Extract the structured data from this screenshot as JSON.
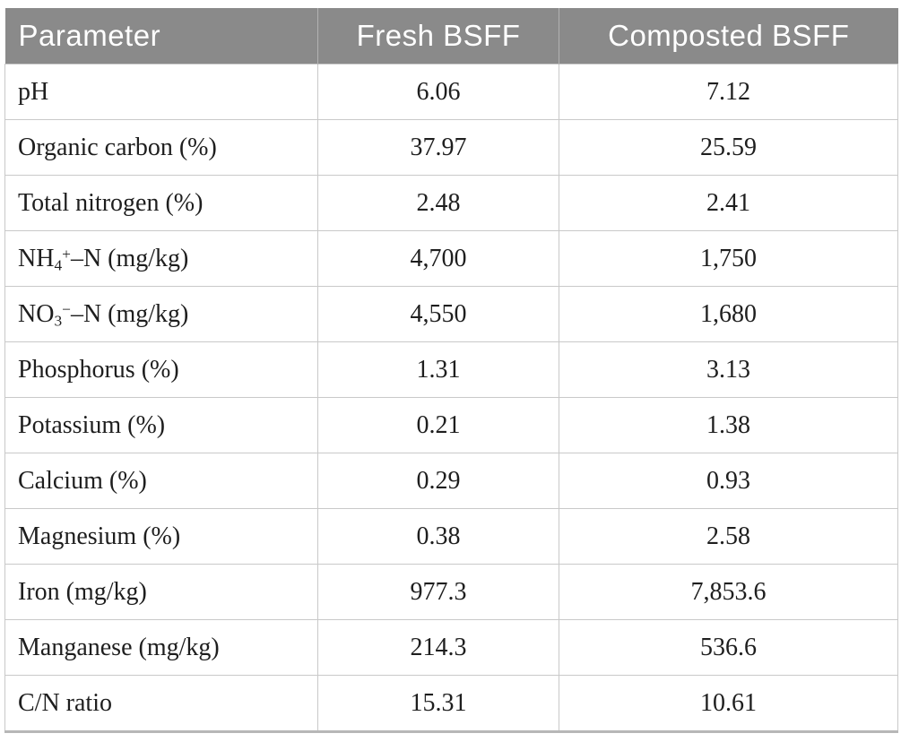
{
  "table": {
    "headers": [
      "Parameter",
      "Fresh BSFF",
      "Composted BSFF"
    ],
    "rows": [
      {
        "param": [
          {
            "text": "pH",
            "style": "normal"
          }
        ],
        "fresh": "6.06",
        "composted": "7.12"
      },
      {
        "param": [
          {
            "text": "Organic carbon (%)",
            "style": "normal"
          }
        ],
        "fresh": "37.97",
        "composted": "25.59"
      },
      {
        "param": [
          {
            "text": "Total nitrogen (%)",
            "style": "normal"
          }
        ],
        "fresh": "2.48",
        "composted": "2.41"
      },
      {
        "param": [
          {
            "text": "NH",
            "style": "normal"
          },
          {
            "text": "4",
            "style": "sub"
          },
          {
            "text": "+",
            "style": "sup"
          },
          {
            "text": "–N (mg/kg)",
            "style": "normal"
          }
        ],
        "fresh": "4,700",
        "composted": "1,750"
      },
      {
        "param": [
          {
            "text": "NO",
            "style": "normal"
          },
          {
            "text": "3",
            "style": "sub"
          },
          {
            "text": "−",
            "style": "sup"
          },
          {
            "text": "–N (mg/kg)",
            "style": "normal"
          }
        ],
        "fresh": "4,550",
        "composted": "1,680"
      },
      {
        "param": [
          {
            "text": "Phosphorus (%)",
            "style": "normal"
          }
        ],
        "fresh": "1.31",
        "composted": "3.13"
      },
      {
        "param": [
          {
            "text": "Potassium (%)",
            "style": "normal"
          }
        ],
        "fresh": "0.21",
        "composted": "1.38"
      },
      {
        "param": [
          {
            "text": "Calcium (%)",
            "style": "normal"
          }
        ],
        "fresh": "0.29",
        "composted": "0.93"
      },
      {
        "param": [
          {
            "text": "Magnesium (%)",
            "style": "normal"
          }
        ],
        "fresh": "0.38",
        "composted": "2.58"
      },
      {
        "param": [
          {
            "text": "Iron (mg/kg)",
            "style": "normal"
          }
        ],
        "fresh": "977.3",
        "composted": "7,853.6"
      },
      {
        "param": [
          {
            "text": "Manganese (mg/kg)",
            "style": "normal"
          }
        ],
        "fresh": "214.3",
        "composted": "536.6"
      },
      {
        "param": [
          {
            "text": "C/N ratio",
            "style": "normal"
          }
        ],
        "fresh": "15.31",
        "composted": "10.61"
      }
    ]
  },
  "colors": {
    "header_bg": "#8a8a8a",
    "header_text": "#ffffff",
    "cell_border": "#c9c9c9",
    "bottom_border": "#b7b7b7",
    "body_text": "#1e1e1e"
  }
}
